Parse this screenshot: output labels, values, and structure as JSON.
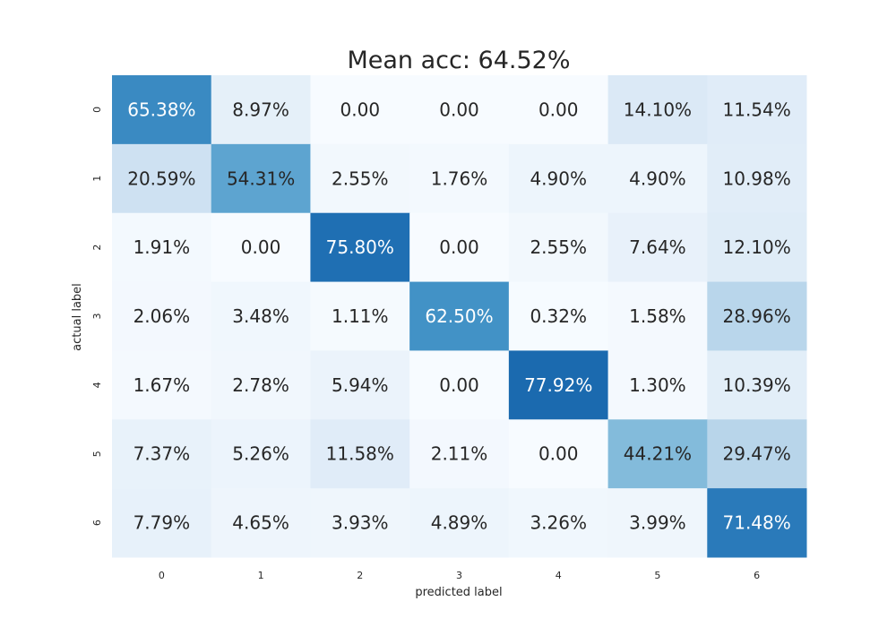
{
  "chart_data": {
    "type": "heatmap",
    "title": "Mean acc: 64.52%",
    "xlabel": "predicted label",
    "ylabel": "actual label",
    "x_categories": [
      "0",
      "1",
      "2",
      "3",
      "4",
      "5",
      "6"
    ],
    "y_categories": [
      "0",
      "1",
      "2",
      "3",
      "4",
      "5",
      "6"
    ],
    "values": [
      [
        65.38,
        8.97,
        0.0,
        0.0,
        0.0,
        14.1,
        11.54
      ],
      [
        20.59,
        54.31,
        2.55,
        1.76,
        4.9,
        4.9,
        10.98
      ],
      [
        1.91,
        0.0,
        75.8,
        0.0,
        2.55,
        7.64,
        12.1
      ],
      [
        2.06,
        3.48,
        1.11,
        62.5,
        0.32,
        1.58,
        28.96
      ],
      [
        1.67,
        2.78,
        5.94,
        0.0,
        77.92,
        1.3,
        10.39
      ],
      [
        7.37,
        5.26,
        11.58,
        2.11,
        0.0,
        44.21,
        29.47
      ],
      [
        7.79,
        4.65,
        3.93,
        4.89,
        3.26,
        3.99,
        71.48
      ]
    ],
    "cell_labels": [
      [
        "65.38%",
        "8.97%",
        "0.00",
        "0.00",
        "0.00",
        "14.10%",
        "11.54%"
      ],
      [
        "20.59%",
        "54.31%",
        "2.55%",
        "1.76%",
        "4.90%",
        "4.90%",
        "10.98%"
      ],
      [
        "1.91%",
        "0.00",
        "75.80%",
        "0.00",
        "2.55%",
        "7.64%",
        "12.10%"
      ],
      [
        "2.06%",
        "3.48%",
        "1.11%",
        "62.50%",
        "0.32%",
        "1.58%",
        "28.96%"
      ],
      [
        "1.67%",
        "2.78%",
        "5.94%",
        "0.00",
        "77.92%",
        "1.30%",
        "10.39%"
      ],
      [
        "7.37%",
        "5.26%",
        "11.58%",
        "2.11%",
        "0.00",
        "44.21%",
        "29.47%"
      ],
      [
        "7.79%",
        "4.65%",
        "3.93%",
        "4.89%",
        "3.26%",
        "3.99%",
        "71.48%"
      ]
    ],
    "colormap": "Blues",
    "value_range": [
      0,
      100
    ],
    "colorbar": false,
    "grid": false
  }
}
